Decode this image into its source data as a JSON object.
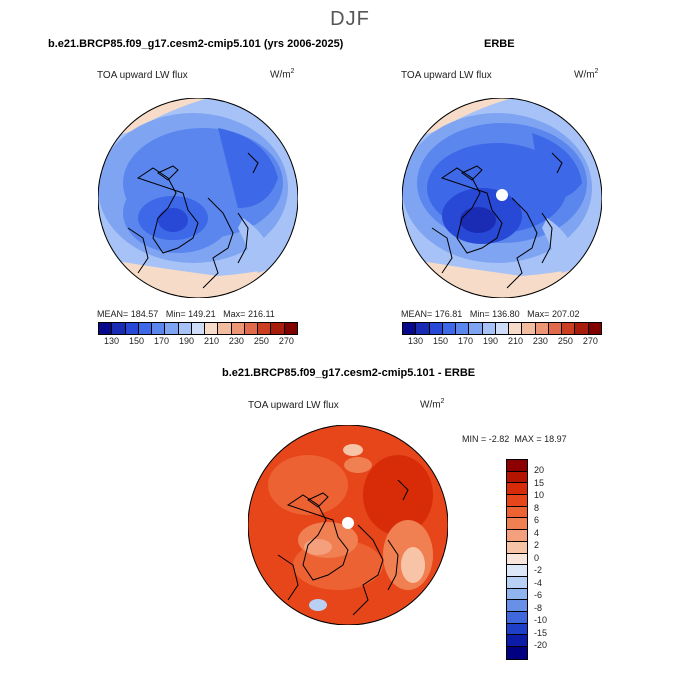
{
  "title": "DJF",
  "panels": {
    "model": {
      "header": "b.e21.BRCP85.f09_g17.cesm2-cmip5.101 (yrs 2006-2025)",
      "variable": "TOA upward LW flux",
      "units": "W/m",
      "units_exp": "2",
      "mean_label": "MEAN=",
      "mean": "184.57",
      "min_label": "Min=",
      "min": "149.21",
      "max_label": "Max=",
      "max": "216.11"
    },
    "obs": {
      "header": "ERBE",
      "variable": "TOA upward LW flux",
      "units": "W/m",
      "units_exp": "2",
      "mean_label": "MEAN=",
      "mean": "176.81",
      "min_label": "Min=",
      "min": "136.80",
      "max_label": "Max=",
      "max": "207.02"
    },
    "diff": {
      "header": "b.e21.BRCP85.f09_g17.cesm2-cmip5.101 - ERBE",
      "variable": "TOA upward LW flux",
      "units": "W/m",
      "units_exp": "2",
      "min_label": "MIN =",
      "min": "-2.82",
      "max_label": "MAX =",
      "max": "18.97"
    }
  },
  "colorbar_main": {
    "ticks": [
      "130",
      "150",
      "170",
      "190",
      "210",
      "230",
      "250",
      "270"
    ],
    "colors": [
      "#08088c",
      "#1a2cb4",
      "#2848d6",
      "#3d68e8",
      "#5a86ee",
      "#7ea4f2",
      "#a6c2f6",
      "#cfdcf8",
      "#f6dcc8",
      "#f2bc9e",
      "#ec9676",
      "#e26a4c",
      "#cc3e22",
      "#a81c0c",
      "#800000"
    ]
  },
  "colorbar_diff": {
    "ticks": [
      "20",
      "15",
      "10",
      "8",
      "6",
      "4",
      "2",
      "0",
      "-2",
      "-4",
      "-6",
      "-8",
      "-10",
      "-15",
      "-20"
    ],
    "colors": [
      "#8c0000",
      "#b41400",
      "#d82c08",
      "#e6461a",
      "#ec6232",
      "#f08052",
      "#f4a07c",
      "#f8c4a8",
      "#f8e6dc",
      "#dce8f8",
      "#b8d0f4",
      "#90b4ee",
      "#6890e6",
      "#3e68dc",
      "#1e40c8",
      "#0c1ca8",
      "#000080"
    ]
  }
}
